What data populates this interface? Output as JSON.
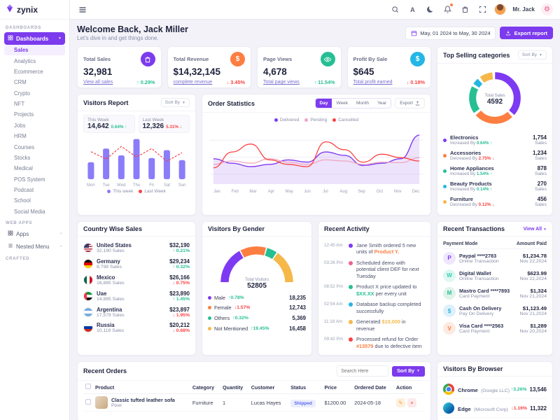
{
  "theme": {
    "primary": "#7c3bed",
    "success": "#26bf94",
    "danger": "#fb4242",
    "warning": "#f5b849",
    "info": "#23b7e5",
    "orange": "#fd7e41",
    "bg": "#f2f2f8"
  },
  "app": {
    "name": "zynix"
  },
  "topbar": {
    "user_name": "Mr. Jack"
  },
  "sidebar": {
    "section_dashboards": "DASHBOARDS",
    "dashboards_label": "Dashboards",
    "items": [
      {
        "label": "Sales",
        "state": "active"
      },
      {
        "label": "Analytics",
        "state": ""
      },
      {
        "label": "Ecommerce",
        "state": ""
      },
      {
        "label": "CRM",
        "state": ""
      },
      {
        "label": "Crypto",
        "state": ""
      },
      {
        "label": "NFT",
        "state": ""
      },
      {
        "label": "Projects",
        "state": ""
      },
      {
        "label": "Jobs",
        "state": ""
      },
      {
        "label": "HRM",
        "state": ""
      },
      {
        "label": "Courses",
        "state": ""
      },
      {
        "label": "Stocks",
        "state": ""
      },
      {
        "label": "Medical",
        "state": ""
      },
      {
        "label": "POS System",
        "state": ""
      },
      {
        "label": "Podcast",
        "state": ""
      },
      {
        "label": "School",
        "state": ""
      },
      {
        "label": "Social Media",
        "state": ""
      }
    ],
    "section_webapps": "WEB APPS",
    "apps_label": "Apps",
    "nested_label": "Nested Menu",
    "section_crafted": "CRAFTED"
  },
  "welcome": {
    "title": "Welcome Back, Jack Miller",
    "subtitle": "Let's dive in and get things done.",
    "date_range": "May, 01 2024 to May, 30 2024",
    "export_label": "Export report"
  },
  "kpis": [
    {
      "title": "Total Sales",
      "value": "32,981",
      "link": "View all sales",
      "change": "0.29%",
      "arrow": "↑",
      "tone": "success"
    },
    {
      "title": "Total Revenue",
      "value": "$14,32,145",
      "link": "complete revenue",
      "change": "3.45%",
      "arrow": "↓",
      "tone": "danger"
    },
    {
      "title": "Page Views",
      "value": "4,678",
      "link": "Total page views",
      "change": "11.54%",
      "arrow": "↑",
      "tone": "success"
    },
    {
      "title": "Profit By Sale",
      "value": "$645",
      "link": "Total profit earned",
      "change": "0.18%",
      "arrow": "↓",
      "tone": "danger"
    }
  ],
  "top_selling": {
    "title": "Top Selling categories",
    "sort_label": "Sort By",
    "center_label": "Total Sales",
    "center_value": "4592",
    "items": [
      {
        "name": "Electronics",
        "trend_prefix": "Increased By ",
        "change": "0.64%",
        "arrow": "↑",
        "tone": "success",
        "value": "1,754",
        "unit": "Sales",
        "color": "#7e3af2"
      },
      {
        "name": "Accessories",
        "trend_prefix": "Decreased By ",
        "change": "2.75%",
        "arrow": "↓",
        "tone": "danger",
        "value": "1,234",
        "unit": "Sales",
        "color": "#fd7e41"
      },
      {
        "name": "Home Appliances",
        "trend_prefix": "Increased By ",
        "change": "1.54%",
        "arrow": "↑",
        "tone": "success",
        "value": "878",
        "unit": "Sales",
        "color": "#26bf94"
      },
      {
        "name": "Beauty Products",
        "trend_prefix": "Increased By ",
        "change": "0.14%",
        "arrow": "↑",
        "tone": "success",
        "value": "270",
        "unit": "Sales",
        "color": "#23b7e5"
      },
      {
        "name": "Furniture",
        "trend_prefix": "Decreased By ",
        "change": "0.12%",
        "arrow": "↓",
        "tone": "danger",
        "value": "456",
        "unit": "Sales",
        "color": "#f5b849"
      }
    ],
    "chart_data": {
      "type": "donut",
      "labels": [
        "Electronics",
        "Accessories",
        "Home Appliances",
        "Beauty Products",
        "Furniture"
      ],
      "values": [
        1754,
        1234,
        878,
        270,
        456
      ],
      "colors": [
        "#7e3af2",
        "#fd7e41",
        "#26bf94",
        "#23b7e5",
        "#f5b849"
      ],
      "center_label": "Total Sales",
      "center_value": 4592
    }
  },
  "visitors_report": {
    "title": "Visitors Report",
    "sort_label": "Sort By",
    "this_week": {
      "label": "This Week",
      "value": "14,642",
      "change": "0.64%",
      "arrow": "↑",
      "tone": "success"
    },
    "last_week": {
      "label": "Last Week",
      "value": "12,326",
      "change": "5.31%",
      "arrow": "↓",
      "tone": "danger"
    },
    "legend": [
      {
        "label": "This week",
        "color": "#8b7cfa"
      },
      {
        "label": "Last Week",
        "color": "#fb4242"
      }
    ],
    "chart_data": {
      "type": "bar+line",
      "categories": [
        "Mon",
        "Tue",
        "Wed",
        "Thu",
        "Fri",
        "Sat",
        "Sun"
      ],
      "series": [
        {
          "name": "This week",
          "type": "bar",
          "color": "#8b7cfa",
          "values": [
            32,
            58,
            45,
            76,
            40,
            55,
            36
          ]
        },
        {
          "name": "Last Week",
          "type": "line",
          "color": "#fb4242",
          "values": [
            52,
            38,
            62,
            42,
            58,
            34,
            50
          ]
        }
      ]
    }
  },
  "order_statistics": {
    "title": "Order Statistics",
    "tabs": [
      {
        "label": "Day",
        "state": "active"
      },
      {
        "label": "Week",
        "state": ""
      },
      {
        "label": "Month",
        "state": ""
      },
      {
        "label": "Year",
        "state": ""
      }
    ],
    "export_label": "Export",
    "legend": [
      {
        "label": "Delivered",
        "color": "#7e3af2"
      },
      {
        "label": "Pending",
        "color": "#f0a6c1"
      },
      {
        "label": "Cancelled",
        "color": "#fb4242"
      }
    ],
    "chart_data": {
      "type": "area+line",
      "x": [
        "Jan",
        "Feb",
        "Mar",
        "Apr",
        "May",
        "Jun",
        "Jul",
        "Aug",
        "Sep",
        "Oct",
        "Nov",
        "Dec"
      ],
      "series": [
        {
          "name": "Delivered",
          "type": "area",
          "color": "#7e3af2",
          "values": [
            40,
            32,
            26,
            30,
            38,
            34,
            52,
            46,
            28,
            32,
            40,
            82
          ]
        },
        {
          "name": "Pending",
          "type": "line",
          "color": "#f0a6c1",
          "values": [
            30,
            36,
            32,
            40,
            34,
            30,
            38,
            36,
            30,
            34,
            33,
            42
          ]
        },
        {
          "name": "Cancelled",
          "type": "line",
          "color": "#fb4242",
          "values": [
            24,
            52,
            66,
            38,
            30,
            26,
            70,
            56,
            34,
            48,
            42,
            36
          ]
        }
      ]
    }
  },
  "country_sales": {
    "title": "Country Wise Sales",
    "rows": [
      {
        "name": "United States",
        "sales": "32,190 Sales",
        "amount": "$32,190",
        "change": "0.21%",
        "arrow": "↑",
        "tone": "success",
        "flag": "flag-us"
      },
      {
        "name": "Germany",
        "sales": "8,798 Sales",
        "amount": "$29,234",
        "change": "0.32%",
        "arrow": "↑",
        "tone": "success",
        "flag": "flag-de"
      },
      {
        "name": "Mexico",
        "sales": "16,885 Sales",
        "amount": "$26,166",
        "change": "0.75%",
        "arrow": "↓",
        "tone": "danger",
        "flag": "flag-mx"
      },
      {
        "name": "Uae",
        "sales": "14,885 Sales",
        "amount": "$23,890",
        "change": "1.45%",
        "arrow": "↑",
        "tone": "success",
        "flag": "flag-ae"
      },
      {
        "name": "Argentina",
        "sales": "17,578 Sales",
        "amount": "$23,897",
        "change": "1.95%",
        "arrow": "↓",
        "tone": "danger",
        "flag": "flag-ar"
      },
      {
        "name": "Russia",
        "sales": "10,118 Sales",
        "amount": "$20,212",
        "change": "0.68%",
        "arrow": "↓",
        "tone": "danger",
        "flag": "flag-ru"
      }
    ]
  },
  "gender": {
    "title": "Visitors By Gender",
    "center_label": "Total Visitors",
    "center_value": "52805",
    "items": [
      {
        "label": "Male",
        "change": "0.78%",
        "arrow": "↑",
        "tone": "success",
        "value": "18,235",
        "color": "#7e3af2"
      },
      {
        "label": "Female",
        "change": "1.57%",
        "arrow": "↓",
        "tone": "danger",
        "value": "12,743",
        "color": "#fd7e41"
      },
      {
        "label": "Others",
        "change": "0.32%",
        "arrow": "↑",
        "tone": "success",
        "value": "5,369",
        "color": "#26bf94"
      },
      {
        "label": "Not Mentioned",
        "change": "19.45%",
        "arrow": "↑",
        "tone": "success",
        "value": "16,458",
        "color": "#f5b849"
      }
    ],
    "chart_data": {
      "type": "half-donut",
      "labels": [
        "Male",
        "Female",
        "Others",
        "Not Mentioned"
      ],
      "values": [
        18235,
        12743,
        5369,
        16458
      ],
      "colors": [
        "#7e3af2",
        "#fd7e41",
        "#26bf94",
        "#f5b849"
      ],
      "total": 52805
    }
  },
  "activity": {
    "title": "Recent Activity",
    "items": [
      {
        "time": "12:45 Am",
        "prefix": "Jane Smith ordered 5 new units of ",
        "highlight": "Product Y.",
        "suffix": "",
        "hl_color": "#fd7e41",
        "dot": "#7e3af2"
      },
      {
        "time": "03:26 Pm",
        "prefix": "Scheduled demo with potential client DEF for next Tuesday",
        "highlight": "",
        "suffix": "",
        "hl_color": "",
        "dot": "#f06292"
      },
      {
        "time": "08:52 Pm",
        "prefix": "Product X price updated to ",
        "highlight": "$XX.XX",
        "suffix": " per every unit",
        "hl_color": "#26bf94",
        "dot": "#26bf94"
      },
      {
        "time": "02:54 Am",
        "prefix": "Database backup completed successfully",
        "highlight": "",
        "suffix": "",
        "hl_color": "",
        "dot": "#23b7e5"
      },
      {
        "time": "11:18 Am",
        "prefix": "Generated ",
        "highlight": "$10,000",
        "suffix": " in revenue",
        "hl_color": "#f5b849",
        "dot": "#f5b849"
      },
      {
        "time": "09:42 Pm",
        "prefix": "Processed refund for Order ",
        "highlight": "#13579",
        "suffix": " due to defective item",
        "hl_color": "#fd7e41",
        "dot": "#fb4242"
      }
    ]
  },
  "transactions": {
    "title": "Recent Transactions",
    "view_all": "View All",
    "col_mode": "Payment Mode",
    "col_amount": "Amount Paid",
    "rows": [
      {
        "name": "Paypal ****2783",
        "method": "Online Transaction",
        "amount": "$1,234.78",
        "date": "Nov 22,2024",
        "glyph": "P",
        "bg": "#efe7fd",
        "fg": "#7e3af2"
      },
      {
        "name": "Digital Wallet",
        "method": "Online Transaction",
        "amount": "$623.99",
        "date": "Nov 22,2024",
        "glyph": "W",
        "bg": "#e0f7f2",
        "fg": "#2dd0b0"
      },
      {
        "name": "Mastro Card ****7893",
        "method": "Card Payment",
        "amount": "$1,324",
        "date": "Nov 21,2024",
        "glyph": "M",
        "bg": "#dff3ea",
        "fg": "#26bf94"
      },
      {
        "name": "Cash On Delivery",
        "method": "Pay On Delivery",
        "amount": "$1,123.49",
        "date": "Nov 21,2024",
        "glyph": "$",
        "bg": "#def0fa",
        "fg": "#23b7e5"
      },
      {
        "name": "Visa Card ****2563",
        "method": "Card Payment",
        "amount": "$1,289",
        "date": "Nov 20,2024",
        "glyph": "V",
        "bg": "#fdeae0",
        "fg": "#fd7e41"
      }
    ]
  },
  "orders": {
    "title": "Recent Orders",
    "search_placeholder": "Search Here",
    "sort_label": "Sort By",
    "columns": [
      "Product",
      "Category",
      "Quantity",
      "Customer",
      "Status",
      "Price",
      "Ordered Date",
      "Action"
    ],
    "rows": [
      {
        "product": "Classic tufted leather sofa",
        "variant": "Pixel",
        "category": "Furniture",
        "quantity": "1",
        "customer": "Lucas Hayes",
        "status": "Shipped",
        "price": "$1200.00",
        "date": "2024-05-18"
      }
    ]
  },
  "browser": {
    "title": "Visitors By Browser",
    "rows": [
      {
        "name": "Chrome",
        "company": "(Google LLC)",
        "change": "3.26%",
        "arrow": "↑",
        "tone": "success",
        "value": "13,546",
        "icon": "chrome-icon"
      },
      {
        "name": "Edge",
        "company": "(Microsoft Corp)",
        "change": "1.16%",
        "arrow": "↓",
        "tone": "danger",
        "value": "11,322",
        "icon": "edge-icon"
      }
    ]
  }
}
